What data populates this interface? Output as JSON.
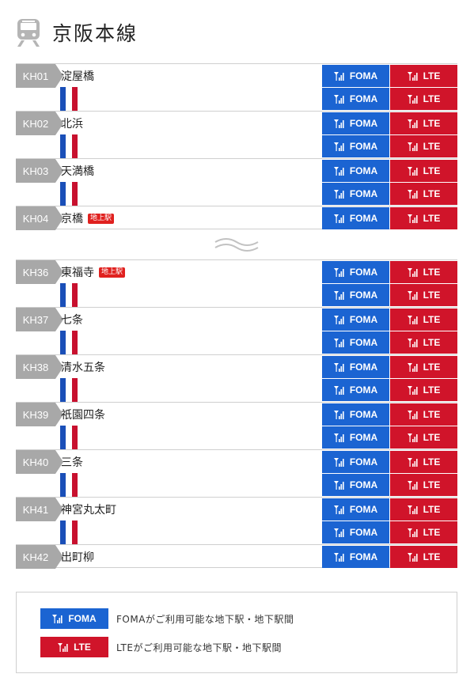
{
  "header": {
    "title": "京阪本線",
    "icon": "train-icon"
  },
  "labels": {
    "foma": "FOMA",
    "lte": "LTE"
  },
  "colors": {
    "foma": "#1b64d2",
    "lte": "#d0142a",
    "code_bg": "#a8a8a8",
    "track_blue": "#1a4fb8",
    "track_red": "#c8102e",
    "badge": "#e0211f"
  },
  "section_a": {
    "stations": [
      {
        "code": "KH01",
        "name": "淀屋橋",
        "badge": ""
      },
      {
        "code": "KH02",
        "name": "北浜",
        "badge": ""
      },
      {
        "code": "KH03",
        "name": "天満橋",
        "badge": ""
      },
      {
        "code": "KH04",
        "name": "京橋",
        "badge": "地上駅"
      }
    ]
  },
  "section_b": {
    "stations": [
      {
        "code": "KH36",
        "name": "東福寺",
        "badge": "地上駅"
      },
      {
        "code": "KH37",
        "name": "七条",
        "badge": ""
      },
      {
        "code": "KH38",
        "name": "清水五条",
        "badge": ""
      },
      {
        "code": "KH39",
        "name": "祇園四条",
        "badge": ""
      },
      {
        "code": "KH40",
        "name": "三条",
        "badge": ""
      },
      {
        "code": "KH41",
        "name": "神宮丸太町",
        "badge": ""
      },
      {
        "code": "KH42",
        "name": "出町柳",
        "badge": ""
      }
    ]
  },
  "legend": {
    "foma_label": "FOMA",
    "foma_text": "FOMAがご利用可能な地下駅・地下駅間",
    "lte_label": "LTE",
    "lte_text": "LTEがご利用可能な地下駅・地下駅間"
  }
}
